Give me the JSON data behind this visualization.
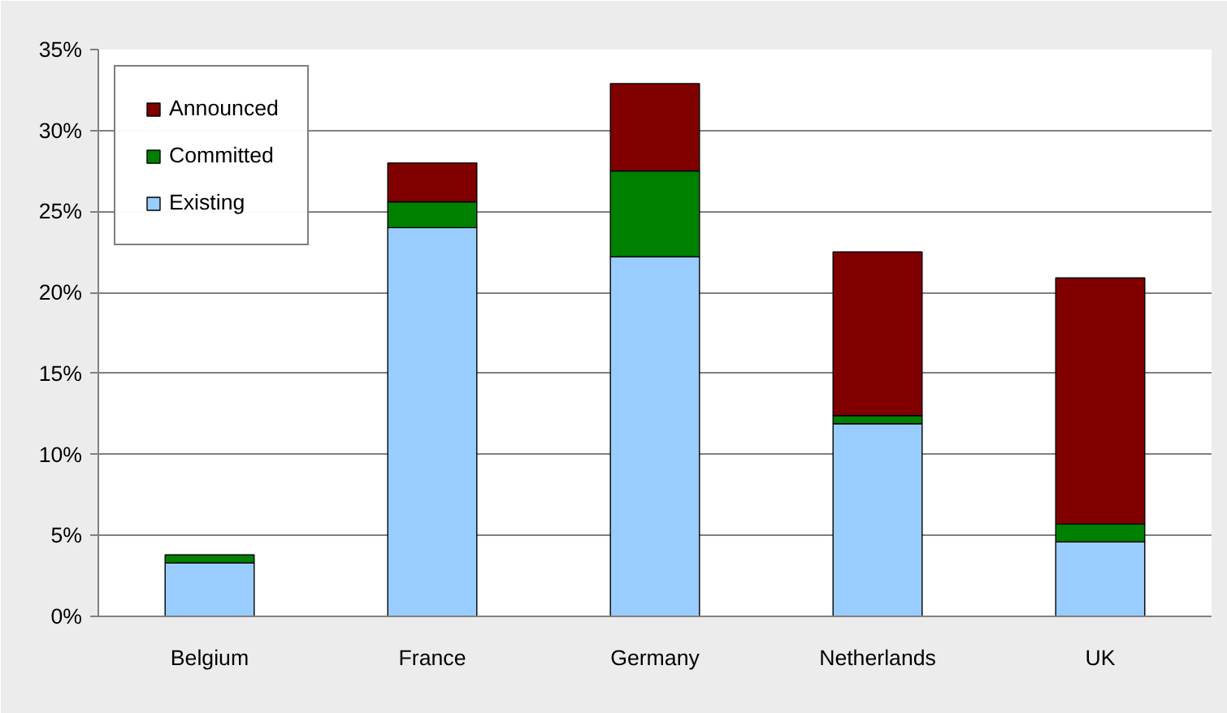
{
  "chart_data": {
    "type": "bar",
    "stacked": true,
    "categories": [
      "Belgium",
      "France",
      "Germany",
      "Netherlands",
      "UK"
    ],
    "series": [
      {
        "name": "Existing",
        "color": "#99ccff",
        "values": [
          3.3,
          24.0,
          22.2,
          11.9,
          4.6
        ]
      },
      {
        "name": "Committed",
        "color": "#008000",
        "values": [
          0.5,
          1.6,
          5.3,
          0.5,
          1.1
        ]
      },
      {
        "name": "Announced",
        "color": "#800000",
        "values": [
          null,
          2.4,
          5.4,
          10.1,
          15.2
        ]
      }
    ],
    "ylim": [
      0,
      35
    ],
    "yticks": [
      {
        "value": 0,
        "label": "0%"
      },
      {
        "value": 5,
        "label": "5%"
      },
      {
        "value": 10,
        "label": "10%"
      },
      {
        "value": 15,
        "label": "15%"
      },
      {
        "value": 20,
        "label": "20%"
      },
      {
        "value": 25,
        "label": "25%"
      },
      {
        "value": 30,
        "label": "30%"
      },
      {
        "value": 35,
        "label": "35%"
      }
    ],
    "grid": "y",
    "legend": "top left"
  }
}
